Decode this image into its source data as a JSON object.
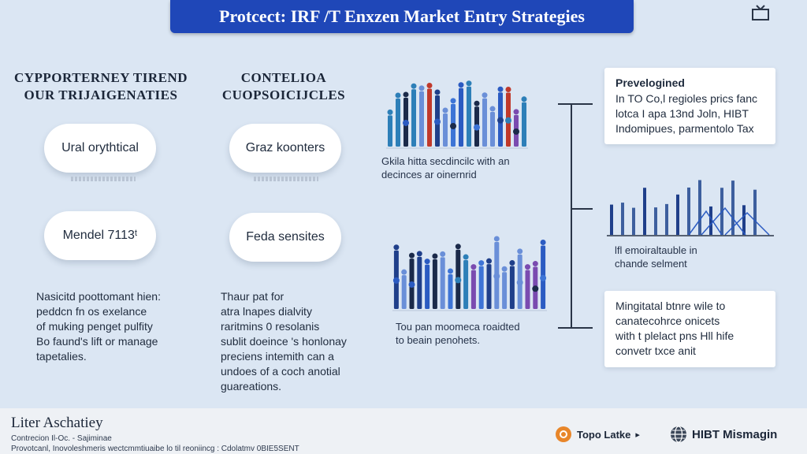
{
  "header": {
    "title": "Protcect: IRF /T Enxzen Market Entry Strategies"
  },
  "left_column": {
    "heading_line1": "CYPPORTERNEY TIREND",
    "heading_line2": "OUR TRIJAIGENATIES",
    "pill_top": "Ural orythtical",
    "pill_bottom": "Mendel 7113ᵗ",
    "body": "Nasicitd poottomant hien:\npeddcn fn os exelance\nof muking penget pulfity\nBo faund's lift or manage\ntapetalies."
  },
  "middle_column": {
    "heading_line1": "CONTELIOA",
    "heading_line2": "CUOPSOICIJCLES",
    "pill_top": "Graz koonters",
    "pill_bottom": "Feda sensites",
    "body": "Thaur pat for\natra lnapes dialvity\nraritmins 0 resolanis\nsublit doeince 's honlonay\npreciens intemith can a\nundoes of a coch anotial\nguareations."
  },
  "charts": {
    "top_caption": "Gkila hitta secdincilc with an\ndecinces ar oinernrid",
    "bottom_caption": "Tou pan moomeca roaidted\nto beain penohets."
  },
  "right_column": {
    "card1_title": "Prevelogined",
    "card1_text": "In TO Co,l regioles prics fanc\nlotca I apa 13nd Joln, HIBT\nIndomipues, parmentolo Tax",
    "city_caption": "lfl emoiraltauble in\nchande selment",
    "card2_text": "Mingitatal btnre wile to\ncanatecohrce onicets\nwith t plelact pns Hll hife\nconvetr txce anit"
  },
  "footer": {
    "title": "Liter Aschatiey",
    "sub": "Contrecion Il-Oc. - Sajiminae",
    "note": "Provotcanl, Inovoleshmeris wectcmmtiuaibe lo til reoniincg : Cdolatmv 0BIE5SENT",
    "logo1_label": "Topo Latke",
    "logo2_label": "HIBT Mismagin"
  },
  "colors": {
    "accent": "#1f47b8",
    "background": "#dbe6f3",
    "logo_orange": "#e8862a"
  },
  "icons": [
    "tv-icon",
    "orange-badge-icon",
    "arrow-icon",
    "globe-icon"
  ]
}
